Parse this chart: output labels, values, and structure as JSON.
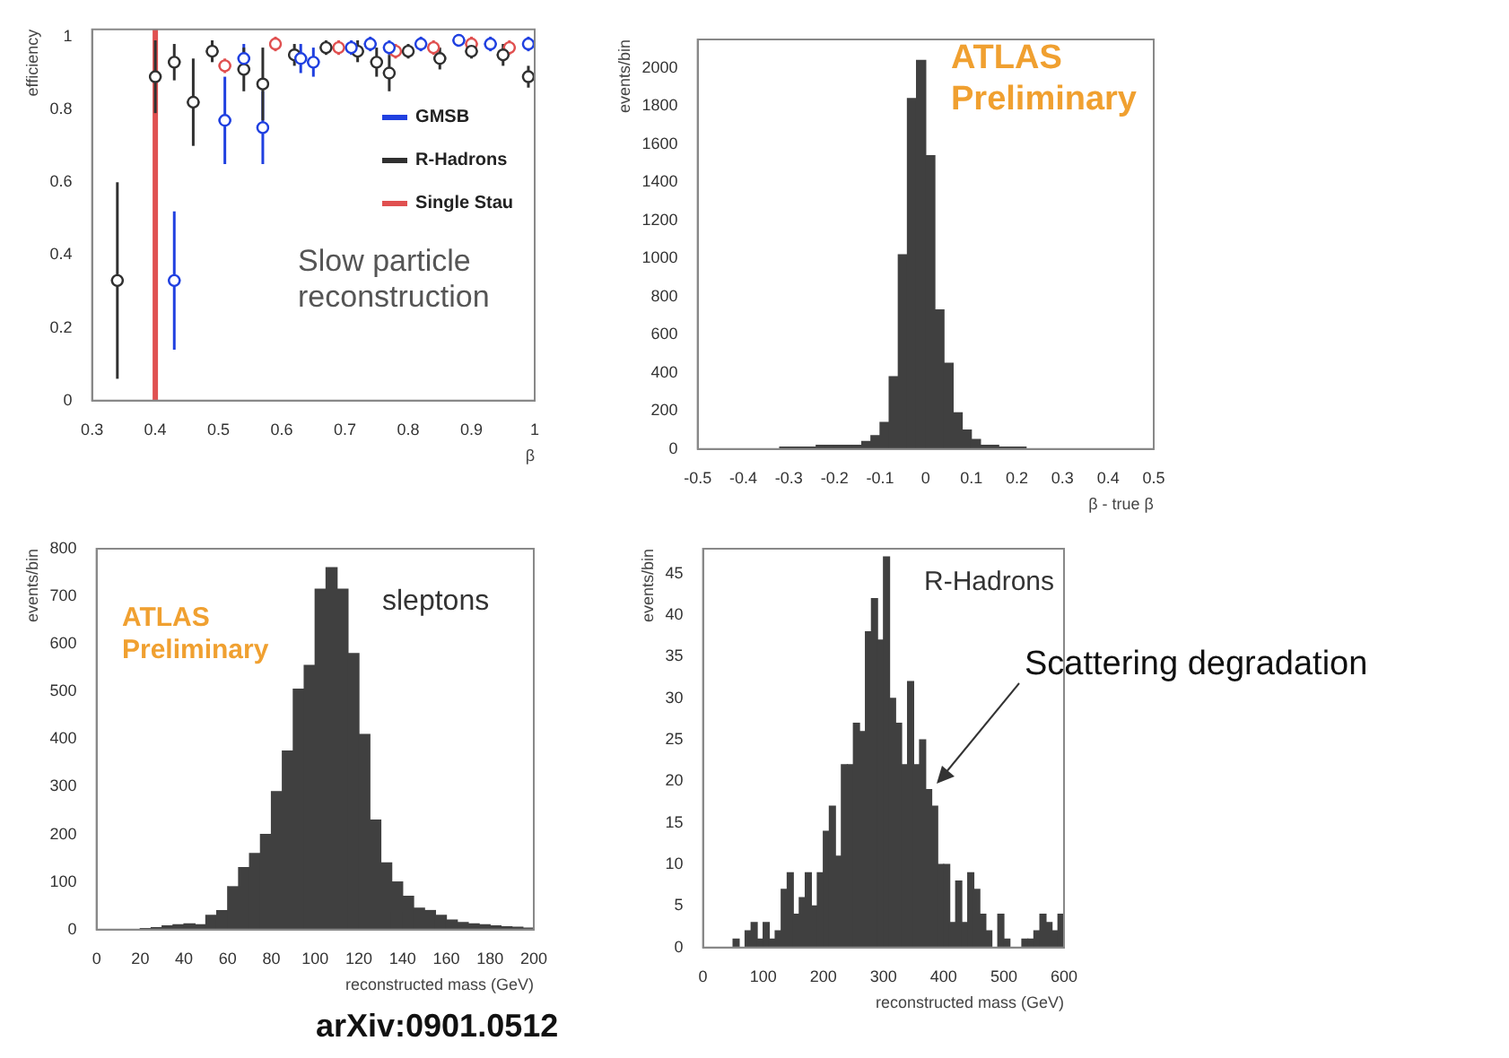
{
  "chart_data": [
    {
      "type": "scatter",
      "xlabel": "β",
      "ylabel": "efficiency",
      "xlim": [
        0.3,
        1
      ],
      "xticks": [
        0.3,
        0.4,
        0.5,
        0.6,
        0.7,
        0.8,
        0.9,
        1
      ],
      "ylim": [
        0,
        1.02
      ],
      "yticks": [
        0,
        0.2,
        0.4,
        0.6,
        0.8,
        1
      ],
      "marker": "circle",
      "legend": "right",
      "annotations": [
        "Slow particle reconstruction"
      ],
      "ref_lines": [
        {
          "axis": "x",
          "value": 0.4,
          "color": "#e05050"
        }
      ],
      "series": [
        {
          "name": "GMSB",
          "color": "#2040e0",
          "x": [
            0.43,
            0.51,
            0.54,
            0.57,
            0.63,
            0.65,
            0.71,
            0.74,
            0.77,
            0.82,
            0.88,
            0.93,
            0.99
          ],
          "values": [
            0.33,
            0.77,
            0.94,
            0.75,
            0.94,
            0.93,
            0.97,
            0.98,
            0.97,
            0.98,
            0.99,
            0.98,
            0.98
          ],
          "errors": [
            0.19,
            0.12,
            0.04,
            0.1,
            0.04,
            0.04,
            0.02,
            0.02,
            0.02,
            0.02,
            0.01,
            0.02,
            0.02
          ],
          "xerrors": [
            0.01,
            0.01,
            0.01,
            0.01,
            0.01,
            0.01,
            0.01,
            0.01,
            0.01,
            0.01,
            0.01,
            0.01,
            0.01
          ]
        },
        {
          "name": "R-Hadrons",
          "color": "#303030",
          "x": [
            0.34,
            0.4,
            0.43,
            0.46,
            0.49,
            0.54,
            0.57,
            0.62,
            0.67,
            0.72,
            0.75,
            0.77,
            0.8,
            0.85,
            0.9,
            0.95,
            0.99
          ],
          "values": [
            0.33,
            0.89,
            0.93,
            0.82,
            0.96,
            0.91,
            0.87,
            0.95,
            0.97,
            0.96,
            0.93,
            0.9,
            0.96,
            0.94,
            0.96,
            0.95,
            0.89
          ],
          "errors": [
            0.27,
            0.1,
            0.05,
            0.12,
            0.03,
            0.06,
            0.1,
            0.03,
            0.02,
            0.03,
            0.04,
            0.05,
            0.02,
            0.03,
            0.02,
            0.03,
            0.03
          ],
          "xerrors": [
            0.01,
            0.01,
            0.01,
            0.01,
            0.01,
            0.01,
            0.01,
            0.01,
            0.01,
            0.01,
            0.01,
            0.01,
            0.01,
            0.01,
            0.01,
            0.01,
            0.01
          ]
        },
        {
          "name": "Single Stau",
          "color": "#e05050",
          "x": [
            0.51,
            0.59,
            0.69,
            0.78,
            0.84,
            0.9,
            0.96
          ],
          "values": [
            0.92,
            0.98,
            0.97,
            0.96,
            0.97,
            0.98,
            0.97
          ],
          "errors": [
            0.02,
            0.02,
            0.02,
            0.02,
            0.02,
            0.02,
            0.02
          ],
          "xerrors": [
            0.01,
            0.01,
            0.01,
            0.01,
            0.01,
            0.01,
            0.01
          ]
        }
      ]
    },
    {
      "type": "histogram",
      "xlabel": "β - true β",
      "ylabel": "events/bin",
      "color": "#404040",
      "xlim": [
        -0.5,
        0.5
      ],
      "xticks": [
        -0.5,
        -0.4,
        -0.3,
        -0.2,
        -0.1,
        0,
        0.1,
        0.2,
        0.3,
        0.4,
        0.5
      ],
      "ylim": [
        0,
        2150
      ],
      "yticks": [
        0,
        200,
        400,
        600,
        800,
        1000,
        1200,
        1400,
        1600,
        1800,
        2000
      ],
      "annotations": [
        "ATLAS Preliminary"
      ],
      "bins": [
        -0.5,
        -0.48,
        -0.46,
        -0.44,
        -0.42,
        -0.4,
        -0.38,
        -0.36,
        -0.34,
        -0.32,
        -0.3,
        -0.28,
        -0.26,
        -0.24,
        -0.22,
        -0.2,
        -0.18,
        -0.16,
        -0.14,
        -0.12,
        -0.1,
        -0.08,
        -0.06,
        -0.04,
        -0.02,
        0,
        0.02,
        0.04,
        0.06,
        0.08,
        0.1,
        0.12,
        0.14,
        0.16,
        0.18,
        0.2,
        0.22,
        0.24,
        0.26,
        0.28,
        0.3,
        0.32,
        0.34,
        0.36,
        0.38,
        0.4,
        0.42,
        0.44,
        0.46,
        0.48,
        0.5
      ],
      "values": [
        0,
        0,
        0,
        0,
        0,
        0,
        0,
        0,
        0,
        10,
        10,
        10,
        10,
        20,
        20,
        20,
        20,
        20,
        40,
        70,
        140,
        380,
        1020,
        1840,
        2040,
        1540,
        730,
        450,
        190,
        100,
        50,
        20,
        20,
        10,
        10,
        10,
        0,
        0,
        0,
        0,
        0,
        0,
        0,
        0,
        0,
        0,
        0,
        0,
        0,
        0
      ]
    },
    {
      "type": "histogram",
      "xlabel": "reconstructed mass (GeV)",
      "ylabel": "events/bin",
      "color": "#404040",
      "xlim": [
        0,
        200
      ],
      "xticks": [
        0,
        20,
        40,
        60,
        80,
        100,
        120,
        140,
        160,
        180,
        200
      ],
      "ylim": [
        0,
        800
      ],
      "yticks": [
        0,
        100,
        200,
        300,
        400,
        500,
        600,
        700,
        800
      ],
      "annotations": [
        "sleptons",
        "ATLAS Preliminary",
        "arXiv:0901.0512"
      ],
      "bins": [
        0,
        5,
        10,
        15,
        20,
        25,
        30,
        35,
        40,
        45,
        50,
        55,
        60,
        65,
        70,
        75,
        80,
        85,
        90,
        95,
        100,
        105,
        110,
        115,
        120,
        125,
        130,
        135,
        140,
        145,
        150,
        155,
        160,
        165,
        170,
        175,
        180,
        185,
        190,
        195,
        200
      ],
      "values": [
        0,
        0,
        0,
        0,
        2,
        4,
        8,
        10,
        12,
        10,
        30,
        40,
        90,
        130,
        160,
        200,
        290,
        375,
        505,
        555,
        715,
        760,
        715,
        580,
        410,
        230,
        140,
        100,
        70,
        45,
        40,
        30,
        20,
        15,
        12,
        10,
        8,
        6,
        5,
        3
      ]
    },
    {
      "type": "histogram",
      "xlabel": "reconstructed mass (GeV)",
      "ylabel": "events/bin",
      "color": "#404040",
      "xlim": [
        0,
        600
      ],
      "xticks": [
        0,
        100,
        200,
        300,
        400,
        500,
        600
      ],
      "ylim": [
        0,
        48
      ],
      "yticks": [
        0,
        5,
        10,
        15,
        20,
        25,
        30,
        35,
        40,
        45
      ],
      "annotations": [
        "R-Hadrons",
        "Scattering degradation"
      ],
      "bins": [
        0,
        10,
        20,
        30,
        40,
        50,
        60,
        70,
        80,
        90,
        100,
        110,
        120,
        130,
        140,
        150,
        160,
        170,
        180,
        190,
        200,
        210,
        220,
        230,
        240,
        250,
        260,
        270,
        280,
        290,
        300,
        310,
        320,
        330,
        340,
        350,
        360,
        370,
        380,
        390,
        400,
        410,
        420,
        430,
        440,
        450,
        460,
        470,
        480,
        490,
        500,
        510,
        520,
        530,
        540,
        550,
        560,
        570,
        580,
        590,
        600
      ],
      "values": [
        0,
        0,
        0,
        0,
        0,
        1,
        0,
        2,
        3,
        1,
        3,
        1,
        2,
        7,
        9,
        4,
        6,
        9,
        5,
        9,
        14,
        17,
        11,
        22,
        22,
        27,
        26,
        38,
        42,
        37,
        47,
        30,
        27,
        22,
        32,
        22,
        25,
        19,
        17,
        10,
        10,
        3,
        8,
        3,
        9,
        7,
        4,
        2,
        0,
        4,
        1,
        0,
        0,
        1,
        1,
        2,
        4,
        3,
        2,
        4
      ]
    }
  ]
}
